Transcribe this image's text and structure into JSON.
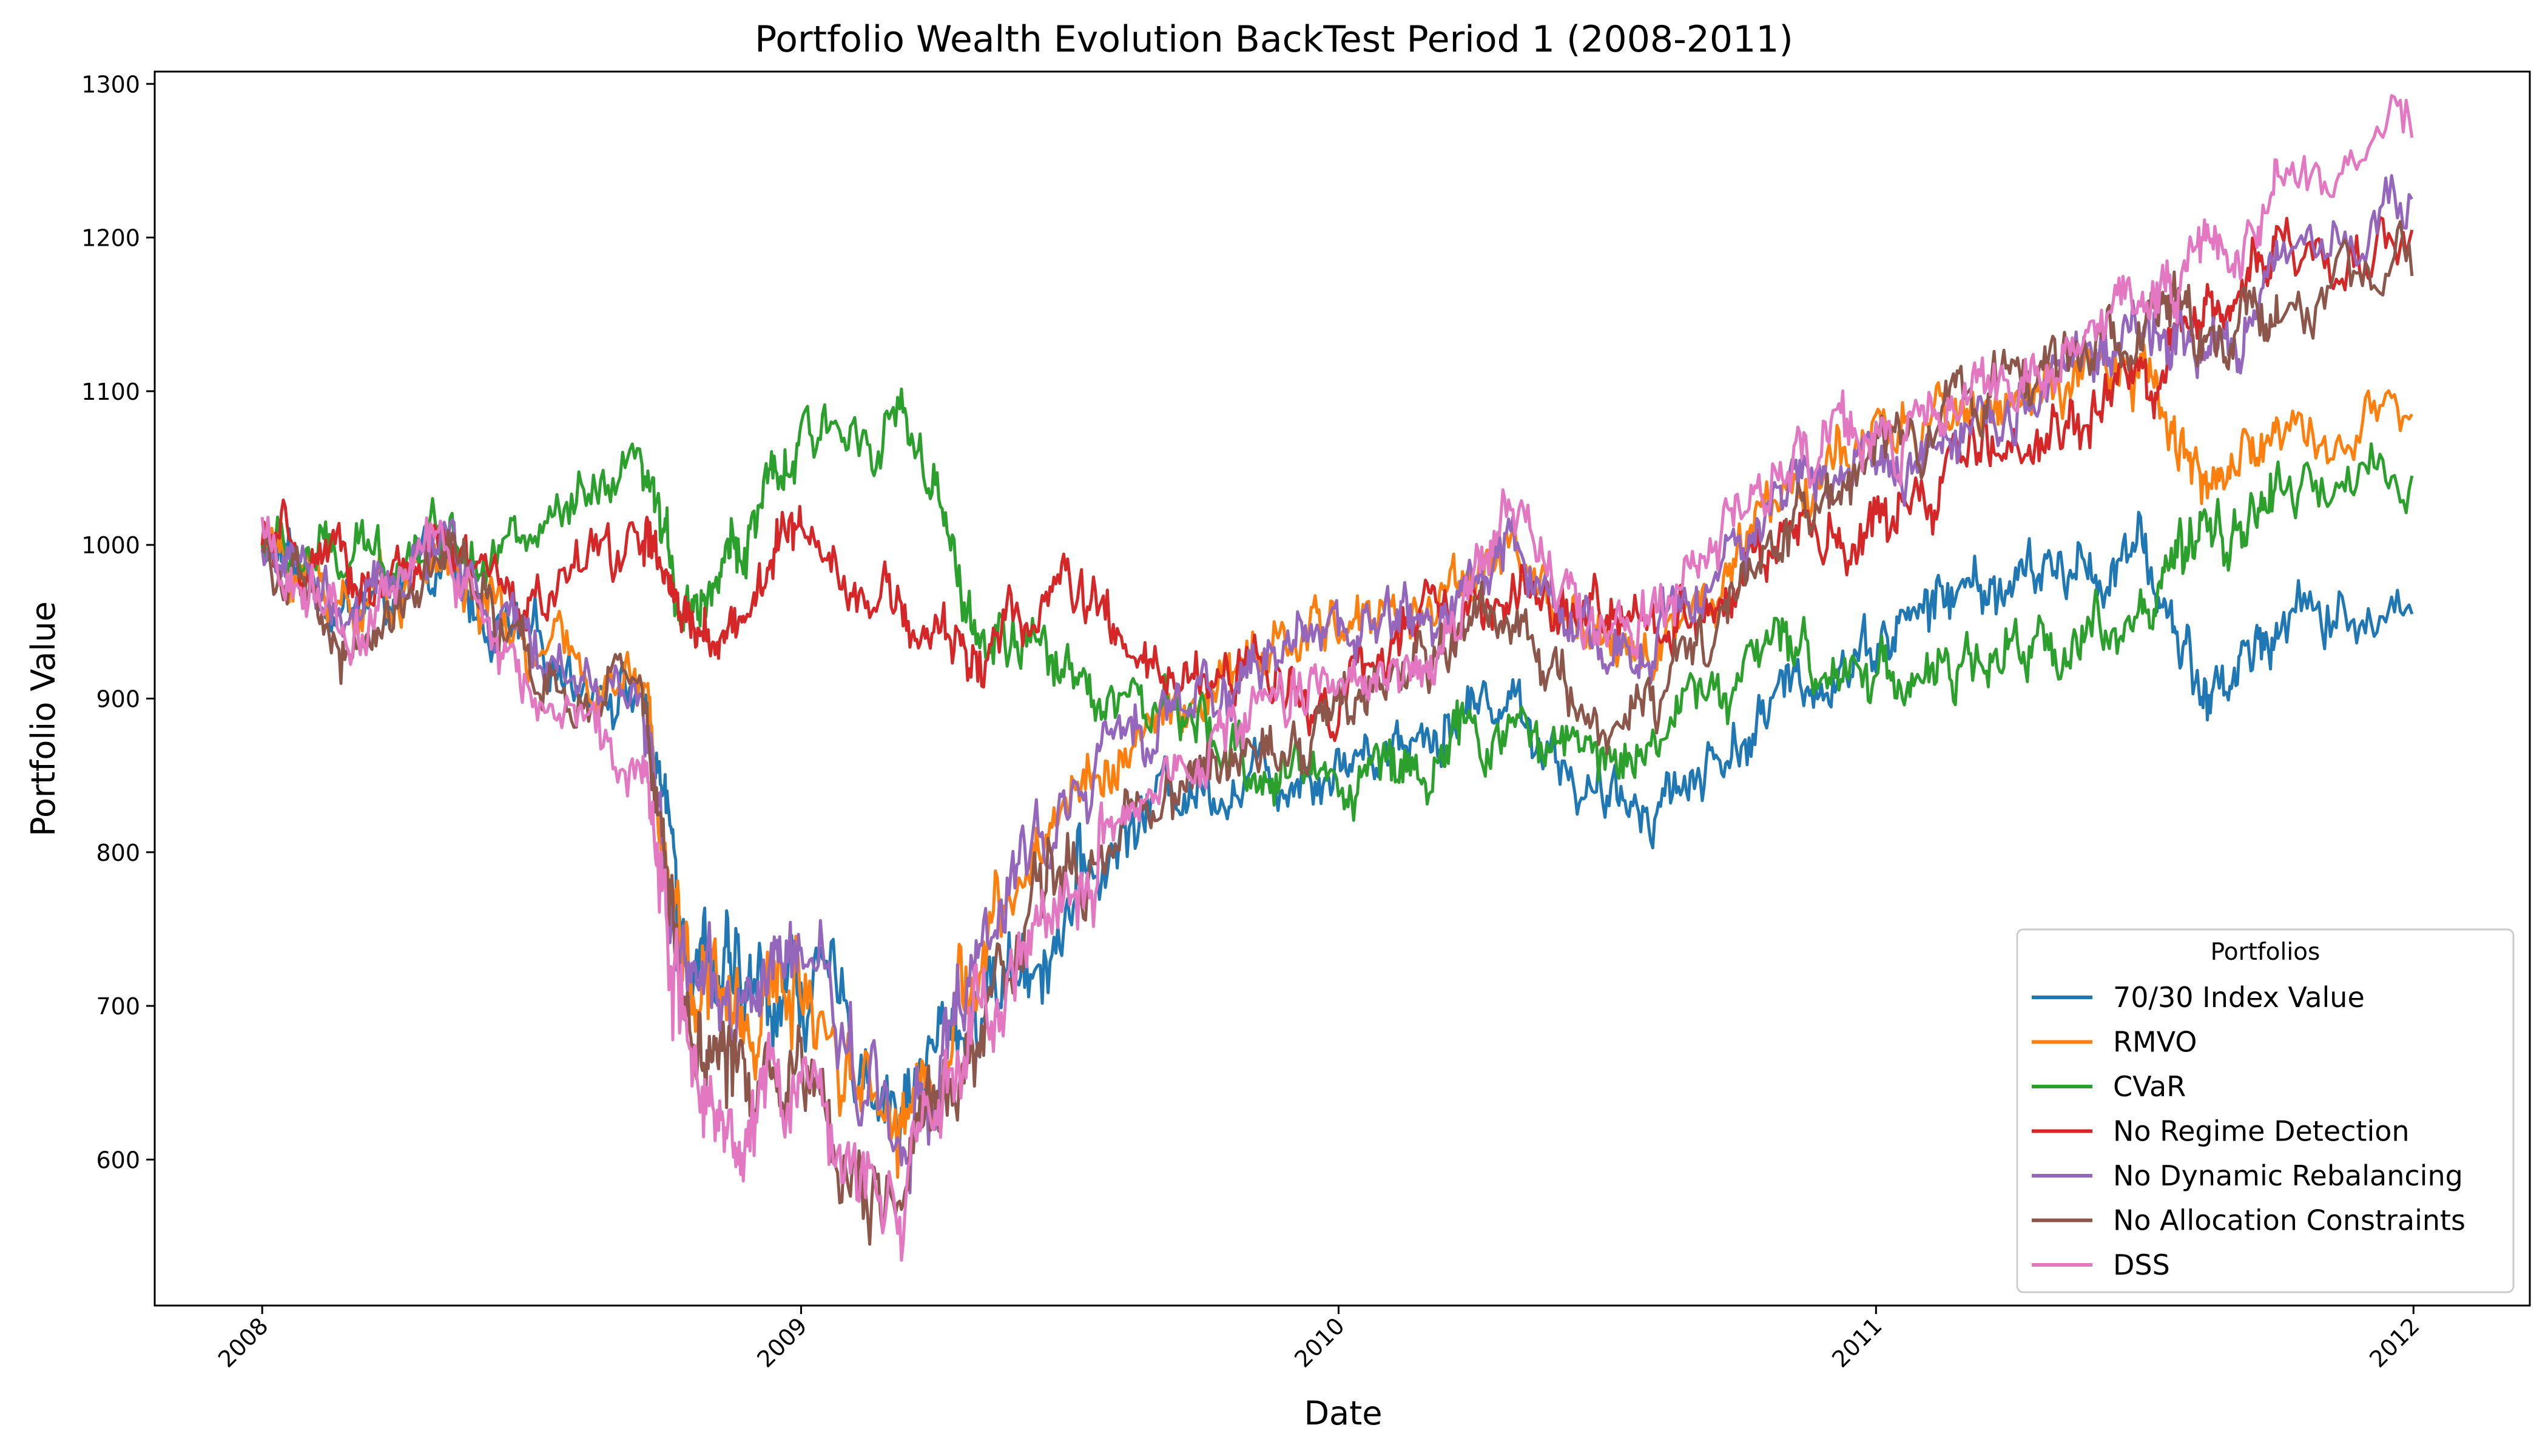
{
  "chart_data": {
    "type": "line",
    "title": "Portfolio Wealth Evolution BackTest Period 1 (2008-2011)",
    "xlabel": "Date",
    "ylabel": "Portfolio Value",
    "xlim": [
      "2007-10-20",
      "2012-03-20"
    ],
    "ylim": [
      505,
      1308
    ],
    "x_ticks": [
      "2008",
      "2009",
      "2010",
      "2011",
      "2012"
    ],
    "y_ticks": [
      "600",
      "700",
      "800",
      "900",
      "1000",
      "1100",
      "1200",
      "1300"
    ],
    "grid": false,
    "legend": {
      "title": "Portfolios",
      "position": "lower right"
    },
    "x": [
      "2008-01-01",
      "2008-03-01",
      "2008-05-01",
      "2008-07-01",
      "2008-09-15",
      "2008-10-15",
      "2008-11-20",
      "2009-01-01",
      "2009-03-09",
      "2009-05-01",
      "2009-07-01",
      "2009-09-01",
      "2009-11-01",
      "2010-01-01",
      "2010-03-01",
      "2010-04-25",
      "2010-07-01",
      "2010-09-01",
      "2010-11-01",
      "2011-01-01",
      "2011-03-01",
      "2011-05-01",
      "2011-07-01",
      "2011-08-15",
      "2011-10-01",
      "2011-12-31"
    ],
    "series": [
      {
        "name": "70/30 Index Value",
        "color": "#1f77b4",
        "values": [
          1000,
          960,
          975,
          930,
          905,
          760,
          700,
          720,
          640,
          700,
          760,
          840,
          850,
          860,
          880,
          905,
          825,
          850,
          900,
          940,
          970,
          980,
          990,
          900,
          950,
          955
        ]
      },
      {
        "name": "RMVO",
        "color": "#ff7f0e",
        "values": [
          1000,
          960,
          990,
          930,
          905,
          730,
          690,
          720,
          625,
          720,
          840,
          880,
          920,
          950,
          960,
          1000,
          920,
          960,
          1040,
          1060,
          1090,
          1100,
          1110,
          1040,
          1070,
          1085
        ]
      },
      {
        "name": "CVaR",
        "color": "#2ca02c",
        "values": [
          1000,
          985,
          1010,
          1000,
          1040,
          960,
          1000,
          1060,
          1090,
          940,
          920,
          890,
          855,
          850,
          860,
          880,
          860,
          900,
          930,
          920,
          915,
          935,
          960,
          1000,
          1030,
          1045
        ]
      },
      {
        "name": "No Regime Detection",
        "color": "#d62728",
        "values": [
          1000,
          975,
          990,
          960,
          1010,
          940,
          950,
          1020,
          950,
          930,
          975,
          905,
          920,
          900,
          950,
          960,
          950,
          960,
          1000,
          1005,
          1050,
          1080,
          1100,
          1150,
          1190,
          1205
        ]
      },
      {
        "name": "No Dynamic Rebalancing",
        "color": "#9467bd",
        "values": [
          1000,
          950,
          1000,
          930,
          900,
          720,
          680,
          740,
          610,
          720,
          840,
          890,
          920,
          950,
          950,
          1000,
          920,
          960,
          1040,
          1050,
          1080,
          1110,
          1140,
          1120,
          1180,
          1225
        ]
      },
      {
        "name": "No Allocation Constraints",
        "color": "#8c564b",
        "values": [
          1000,
          920,
          1000,
          910,
          900,
          700,
          650,
          670,
          560,
          690,
          790,
          840,
          860,
          900,
          920,
          970,
          880,
          920,
          1000,
          1050,
          1090,
          1130,
          1140,
          1130,
          1160,
          1175
        ]
      },
      {
        "name": "DSS",
        "color": "#e377c2",
        "values": [
          1000,
          940,
          1005,
          900,
          870,
          680,
          630,
          650,
          560,
          680,
          760,
          840,
          880,
          920,
          930,
          1020,
          930,
          980,
          1060,
          1070,
          1100,
          1120,
          1160,
          1190,
          1230,
          1265
        ]
      }
    ]
  }
}
